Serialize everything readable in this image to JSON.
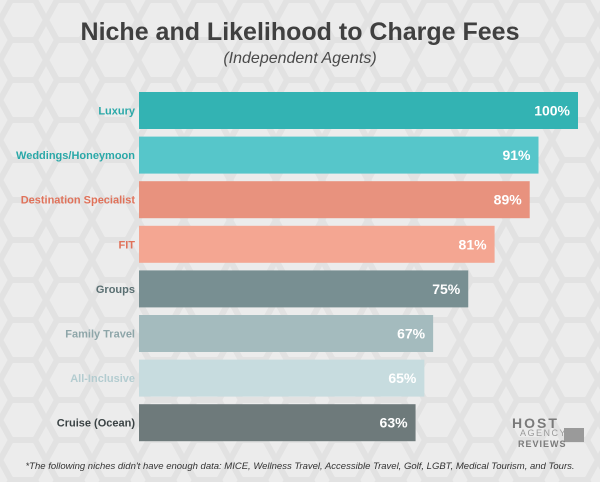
{
  "title": "Niche and Likelihood to Charge Fees",
  "subtitle": "(Independent Agents)",
  "footnote": "*The following niches didn't have enough data: MICE, Wellness Travel, Accessible Travel, Golf, LGBT,  Medical Tourism, and Tours.",
  "logo": {
    "line1": "HOST",
    "line2": "AGENCY",
    "line3": "REVIEWS"
  },
  "chart_data": {
    "type": "bar",
    "orientation": "horizontal",
    "title": "Niche and Likelihood to Charge Fees",
    "subtitle": "(Independent Agents)",
    "categories": [
      "Luxury",
      "Weddings/Honeymoon",
      "Destination Specialist",
      "FIT",
      "Groups",
      "Family Travel",
      "All-Inclusive",
      "Cruise (Ocean)"
    ],
    "values": [
      100,
      91,
      89,
      81,
      75,
      67,
      65,
      63
    ],
    "value_labels": [
      "100%",
      "91%",
      "89%",
      "81%",
      "75%",
      "67%",
      "65%",
      "63%"
    ],
    "colors": [
      "#33b3b3",
      "#56c6ca",
      "#e8927e",
      "#f4a692",
      "#788f92",
      "#a4bbbe",
      "#c7dcdf",
      "#6e7a7b"
    ],
    "label_colors": [
      "#2aa8a8",
      "#2aa8a8",
      "#e0725a",
      "#e0725a",
      "#5a6f72",
      "#8ea6a9",
      "#b3ccd0",
      "#3a4244"
    ],
    "xlim": [
      0,
      100
    ],
    "grid": false,
    "legend": "none"
  }
}
